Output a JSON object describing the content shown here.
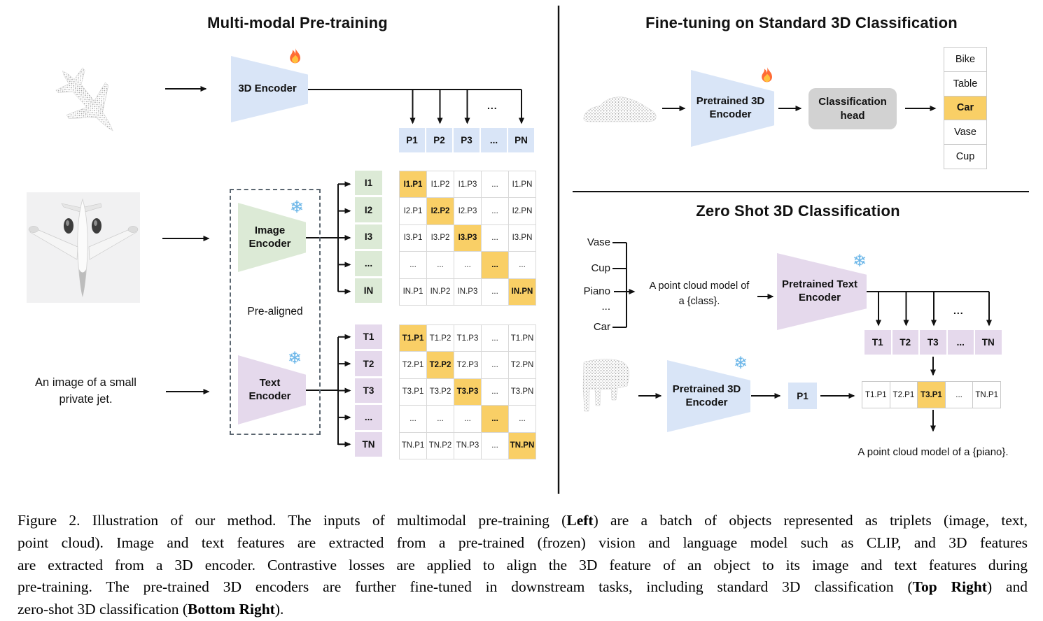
{
  "colors": {
    "blue": "#d9e5f7",
    "green": "#dcead6",
    "purple": "#e5d9ec",
    "orange": "#f9cf66",
    "gray": "#d2d2d2",
    "snow": "#6cb6e8"
  },
  "left": {
    "title": "Multi-modal Pre-training",
    "encoder3d": "3D Encoder",
    "p_row": [
      "P1",
      "P2",
      "P3",
      "...",
      "PN"
    ],
    "dots_label": "...",
    "image_encoder": [
      "Image",
      "Encoder"
    ],
    "text_encoder": [
      "Text",
      "Encoder"
    ],
    "pre_aligned": "Pre-aligned",
    "i_col": [
      "I1",
      "I2",
      "I3",
      "...",
      "IN"
    ],
    "t_col": [
      "T1",
      "T2",
      "T3",
      "...",
      "TN"
    ],
    "text_input": [
      "An image of a small",
      "private jet."
    ],
    "i_matrix": [
      [
        {
          "t": "I1.P1",
          "h": true
        },
        {
          "t": "I1.P2"
        },
        {
          "t": "I1.P3"
        },
        {
          "t": "..."
        },
        {
          "t": "I1.PN"
        }
      ],
      [
        {
          "t": "I2.P1"
        },
        {
          "t": "I2.P2",
          "h": true
        },
        {
          "t": "I2.P3"
        },
        {
          "t": "..."
        },
        {
          "t": "I2.PN"
        }
      ],
      [
        {
          "t": "I3.P1"
        },
        {
          "t": "I3.P2"
        },
        {
          "t": "I3.P3",
          "h": true
        },
        {
          "t": "..."
        },
        {
          "t": "I3.PN"
        }
      ],
      [
        {
          "t": "..."
        },
        {
          "t": "..."
        },
        {
          "t": "..."
        },
        {
          "t": "...",
          "h": true
        },
        {
          "t": "..."
        }
      ],
      [
        {
          "t": "IN.P1"
        },
        {
          "t": "IN.P2"
        },
        {
          "t": "IN.P3"
        },
        {
          "t": "..."
        },
        {
          "t": "IN.PN",
          "h": true
        }
      ]
    ],
    "t_matrix": [
      [
        {
          "t": "T1.P1",
          "h": true
        },
        {
          "t": "T1.P2"
        },
        {
          "t": "T1.P3"
        },
        {
          "t": "..."
        },
        {
          "t": "T1.PN"
        }
      ],
      [
        {
          "t": "T2.P1"
        },
        {
          "t": "T2.P2",
          "h": true
        },
        {
          "t": "T2.P3"
        },
        {
          "t": "..."
        },
        {
          "t": "T2.PN"
        }
      ],
      [
        {
          "t": "T3.P1"
        },
        {
          "t": "T3.P2"
        },
        {
          "t": "T3.P3",
          "h": true
        },
        {
          "t": "..."
        },
        {
          "t": "T3.PN"
        }
      ],
      [
        {
          "t": "..."
        },
        {
          "t": "..."
        },
        {
          "t": "..."
        },
        {
          "t": "...",
          "h": true
        },
        {
          "t": "..."
        }
      ],
      [
        {
          "t": "TN.P1"
        },
        {
          "t": "TN.P2"
        },
        {
          "t": "TN.P3"
        },
        {
          "t": "..."
        },
        {
          "t": "TN.PN",
          "h": true
        }
      ]
    ]
  },
  "top_right": {
    "title": "Fine-tuning on Standard 3D Classification",
    "encoder": [
      "Pretrained 3D",
      "Encoder"
    ],
    "head": [
      "Classification",
      "head"
    ],
    "classes": [
      {
        "label": "Bike"
      },
      {
        "label": "Table"
      },
      {
        "label": "Car",
        "highlight": true
      },
      {
        "label": "Vase"
      },
      {
        "label": "Cup"
      }
    ]
  },
  "bottom_right": {
    "title": "Zero Shot 3D Classification",
    "class_prompts": [
      "Vase",
      "Cup",
      "Piano",
      "...",
      "Car"
    ],
    "prompt": [
      "A point cloud model of",
      "a {class}."
    ],
    "text_encoder": [
      "Pretrained Text",
      "Encoder"
    ],
    "t_row": [
      "T1",
      "T2",
      "T3",
      "...",
      "TN"
    ],
    "dots_label": "...",
    "encoder3d": [
      "Pretrained 3D",
      "Encoder"
    ],
    "p1": "P1",
    "sim_row": [
      {
        "label": "T1.P1"
      },
      {
        "label": "T2.P1"
      },
      {
        "label": "T3.P1",
        "highlight": true
      },
      {
        "label": "..."
      },
      {
        "label": "TN.P1"
      }
    ],
    "result": "A point cloud model of a {piano}."
  },
  "caption": {
    "lines": [
      [
        {
          "t": "Figure 2. Illustration of our method. The inputs of multimodal pre-training ("
        },
        {
          "t": "Left",
          "b": true
        },
        {
          "t": ") are a batch of objects represented as triplets (image, text,"
        }
      ],
      [
        {
          "t": "point cloud). Image and text features are extracted from a pre-trained (frozen) vision and language model such as CLIP, and 3D features"
        }
      ],
      [
        {
          "t": "are extracted from a 3D encoder. Contrastive losses are applied to align the 3D feature of an object to its image and text features during"
        }
      ],
      [
        {
          "t": "pre-training. The pre-trained 3D encoders are further fine-tuned in downstream tasks, including standard 3D classification ("
        },
        {
          "t": "Top Right",
          "b": true
        },
        {
          "t": ") and"
        }
      ],
      [
        {
          "t": "zero-shot 3D classification ("
        },
        {
          "t": "Bottom Right",
          "b": true
        },
        {
          "t": ")."
        }
      ]
    ]
  }
}
